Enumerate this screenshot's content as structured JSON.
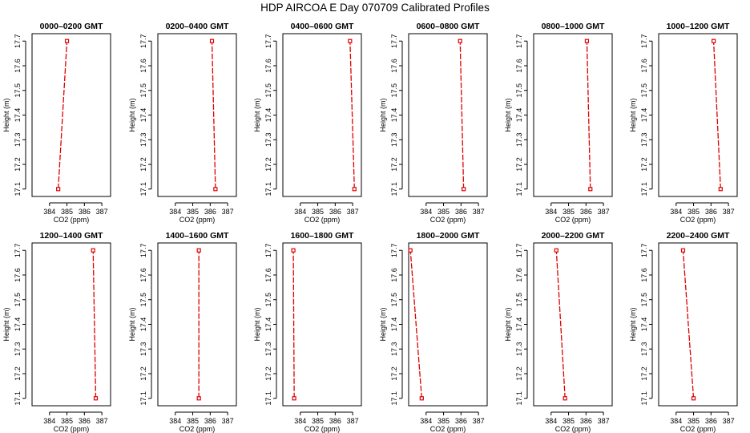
{
  "page": {
    "title": "HDP  AIRCOA E  Day 070709  Calibrated Profiles"
  },
  "style": {
    "series_color": "#e00000",
    "frame_color": "#000000"
  },
  "chart_data": [
    {
      "type": "line",
      "title": "0000–0200 GMT",
      "xlabel": "CO2 (ppm)",
      "ylabel": "Height (m)",
      "xlim": [
        383.0,
        387.5
      ],
      "ylim": [
        17.07,
        17.73
      ],
      "xticks": [
        "384",
        "385",
        "386",
        "387"
      ],
      "yticks": [
        "17.1",
        "17.2",
        "17.3",
        "17.4",
        "17.5",
        "17.6",
        "17.7"
      ],
      "series": [
        {
          "x": [
            384.5,
            385.0
          ],
          "y": [
            17.1,
            17.7
          ]
        }
      ]
    },
    {
      "type": "line",
      "title": "0200–0400 GMT",
      "xlabel": "CO2 (ppm)",
      "ylabel": "Height (m)",
      "xlim": [
        383.0,
        387.5
      ],
      "ylim": [
        17.07,
        17.73
      ],
      "xticks": [
        "384",
        "385",
        "386",
        "387"
      ],
      "yticks": [
        "17.1",
        "17.2",
        "17.3",
        "17.4",
        "17.5",
        "17.6",
        "17.7"
      ],
      "series": [
        {
          "x": [
            386.3,
            386.1
          ],
          "y": [
            17.1,
            17.7
          ]
        }
      ]
    },
    {
      "type": "line",
      "title": "0400–0600 GMT",
      "xlabel": "CO2 (ppm)",
      "ylabel": "Height (m)",
      "xlim": [
        383.0,
        387.5
      ],
      "ylim": [
        17.07,
        17.73
      ],
      "xticks": [
        "384",
        "385",
        "386",
        "387"
      ],
      "yticks": [
        "17.1",
        "17.2",
        "17.3",
        "17.4",
        "17.5",
        "17.6",
        "17.7"
      ],
      "series": [
        {
          "x": [
            387.1,
            386.85
          ],
          "y": [
            17.1,
            17.7
          ]
        }
      ]
    },
    {
      "type": "line",
      "title": "0600–0800 GMT",
      "xlabel": "CO2 (ppm)",
      "ylabel": "Height (m)",
      "xlim": [
        383.0,
        387.5
      ],
      "ylim": [
        17.07,
        17.73
      ],
      "xticks": [
        "384",
        "385",
        "386",
        "387"
      ],
      "yticks": [
        "17.1",
        "17.2",
        "17.3",
        "17.4",
        "17.5",
        "17.6",
        "17.7"
      ],
      "series": [
        {
          "x": [
            386.15,
            385.95
          ],
          "y": [
            17.1,
            17.7
          ]
        }
      ]
    },
    {
      "type": "line",
      "title": "0800–1000 GMT",
      "xlabel": "CO2 (ppm)",
      "ylabel": "Height (m)",
      "xlim": [
        383.0,
        387.5
      ],
      "ylim": [
        17.07,
        17.73
      ],
      "xticks": [
        "384",
        "385",
        "386",
        "387"
      ],
      "yticks": [
        "17.1",
        "17.2",
        "17.3",
        "17.4",
        "17.5",
        "17.6",
        "17.7"
      ],
      "series": [
        {
          "x": [
            386.25,
            386.05
          ],
          "y": [
            17.1,
            17.7
          ]
        }
      ]
    },
    {
      "type": "line",
      "title": "1000–1200 GMT",
      "xlabel": "CO2 (ppm)",
      "ylabel": "Height (m)",
      "xlim": [
        383.0,
        387.5
      ],
      "ylim": [
        17.07,
        17.73
      ],
      "xticks": [
        "384",
        "385",
        "386",
        "387"
      ],
      "yticks": [
        "17.1",
        "17.2",
        "17.3",
        "17.4",
        "17.5",
        "17.6",
        "17.7"
      ],
      "series": [
        {
          "x": [
            386.55,
            386.15
          ],
          "y": [
            17.1,
            17.7
          ]
        }
      ]
    },
    {
      "type": "line",
      "title": "1200–1400 GMT",
      "xlabel": "CO2 (ppm)",
      "ylabel": "Height (m)",
      "xlim": [
        383.0,
        387.5
      ],
      "ylim": [
        17.07,
        17.73
      ],
      "xticks": [
        "384",
        "385",
        "386",
        "387"
      ],
      "yticks": [
        "17.1",
        "17.2",
        "17.3",
        "17.4",
        "17.5",
        "17.6",
        "17.7"
      ],
      "series": [
        {
          "x": [
            386.65,
            386.5
          ],
          "y": [
            17.1,
            17.7
          ]
        }
      ]
    },
    {
      "type": "line",
      "title": "1400–1600 GMT",
      "xlabel": "CO2 (ppm)",
      "ylabel": "Height (m)",
      "xlim": [
        383.0,
        387.5
      ],
      "ylim": [
        17.07,
        17.73
      ],
      "xticks": [
        "384",
        "385",
        "386",
        "387"
      ],
      "yticks": [
        "17.1",
        "17.2",
        "17.3",
        "17.4",
        "17.5",
        "17.6",
        "17.7"
      ],
      "series": [
        {
          "x": [
            385.35,
            385.35
          ],
          "y": [
            17.1,
            17.7
          ]
        }
      ]
    },
    {
      "type": "line",
      "title": "1600–1800 GMT",
      "xlabel": "CO2 (ppm)",
      "ylabel": "Height (m)",
      "xlim": [
        383.0,
        387.5
      ],
      "ylim": [
        17.07,
        17.73
      ],
      "xticks": [
        "384",
        "385",
        "386",
        "387"
      ],
      "yticks": [
        "17.1",
        "17.2",
        "17.3",
        "17.4",
        "17.5",
        "17.6",
        "17.7"
      ],
      "series": [
        {
          "x": [
            383.65,
            383.6
          ],
          "y": [
            17.1,
            17.7
          ]
        }
      ]
    },
    {
      "type": "line",
      "title": "1800–2000 GMT",
      "xlabel": "CO2 (ppm)",
      "ylabel": "Height (m)",
      "xlim": [
        383.0,
        387.5
      ],
      "ylim": [
        17.07,
        17.73
      ],
      "xticks": [
        "384",
        "385",
        "386",
        "387"
      ],
      "yticks": [
        "17.1",
        "17.2",
        "17.3",
        "17.4",
        "17.5",
        "17.6",
        "17.7"
      ],
      "series": [
        {
          "x": [
            383.75,
            383.1
          ],
          "y": [
            17.1,
            17.7
          ]
        }
      ]
    },
    {
      "type": "line",
      "title": "2000–2200 GMT",
      "xlabel": "CO2 (ppm)",
      "ylabel": "Height (m)",
      "xlim": [
        383.0,
        387.5
      ],
      "ylim": [
        17.07,
        17.73
      ],
      "xticks": [
        "384",
        "385",
        "386",
        "387"
      ],
      "yticks": [
        "17.1",
        "17.2",
        "17.3",
        "17.4",
        "17.5",
        "17.6",
        "17.7"
      ],
      "series": [
        {
          "x": [
            384.8,
            384.3
          ],
          "y": [
            17.1,
            17.7
          ]
        }
      ]
    },
    {
      "type": "line",
      "title": "2200–2400 GMT",
      "xlabel": "CO2 (ppm)",
      "ylabel": "Height (m)",
      "xlim": [
        383.0,
        387.5
      ],
      "ylim": [
        17.07,
        17.73
      ],
      "xticks": [
        "384",
        "385",
        "386",
        "387"
      ],
      "yticks": [
        "17.1",
        "17.2",
        "17.3",
        "17.4",
        "17.5",
        "17.6",
        "17.7"
      ],
      "series": [
        {
          "x": [
            385.0,
            384.4
          ],
          "y": [
            17.1,
            17.7
          ]
        }
      ]
    }
  ]
}
